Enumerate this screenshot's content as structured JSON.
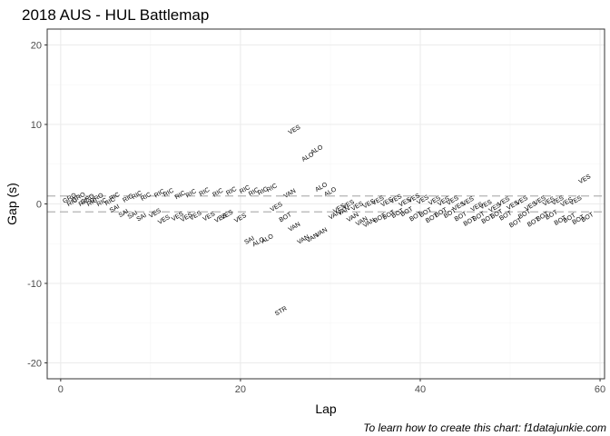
{
  "chart_data": {
    "type": "scatter",
    "title": "2018 AUS - HUL Battlemap",
    "xlabel": "Lap",
    "ylabel": "Gap (s)",
    "caption": "To learn how to create this chart: f1datajunkie.com",
    "xlim": [
      -1.5,
      60.5
    ],
    "ylim": [
      -22,
      22
    ],
    "x_ticks": [
      0,
      20,
      40,
      60
    ],
    "y_ticks": [
      -20,
      -10,
      0,
      10,
      20
    ],
    "grid": true,
    "reference_lines": [
      1,
      -1
    ],
    "label_rotation_deg": 30,
    "colors": {
      "panel_border": "#333333",
      "grid_major": "#ebebeb",
      "grid_minor": "#f5f5f5",
      "reference_line": "#b3b3b3",
      "text": "#000000",
      "tick_text": "#4d4d4d"
    },
    "points": [
      {
        "lap": 1,
        "gap": 0.7,
        "label": "GRO"
      },
      {
        "lap": 1.3,
        "gap": 0.2,
        "label": "RIC"
      },
      {
        "lap": 2,
        "gap": 0.8,
        "label": "GRO"
      },
      {
        "lap": 2.6,
        "gap": 0.2,
        "label": "RIC"
      },
      {
        "lap": 3,
        "gap": 0.6,
        "label": "GRO"
      },
      {
        "lap": 3.5,
        "gap": 0.2,
        "label": "RIC"
      },
      {
        "lap": 4,
        "gap": 0.7,
        "label": "GRO"
      },
      {
        "lap": 4.6,
        "gap": 0.2,
        "label": "RIC"
      },
      {
        "lap": 5.5,
        "gap": 0.3,
        "label": "RIC"
      },
      {
        "lap": 6,
        "gap": 0.9,
        "label": "RIC"
      },
      {
        "lap": 6,
        "gap": -0.6,
        "label": "SAI"
      },
      {
        "lap": 7.5,
        "gap": 0.7,
        "label": "RIC"
      },
      {
        "lap": 7,
        "gap": -1.2,
        "label": "SAI"
      },
      {
        "lap": 8.5,
        "gap": 1.1,
        "label": "RIC"
      },
      {
        "lap": 8,
        "gap": -1.4,
        "label": "SAI"
      },
      {
        "lap": 9.5,
        "gap": 0.9,
        "label": "RIC"
      },
      {
        "lap": 9,
        "gap": -1.7,
        "label": "SAI"
      },
      {
        "lap": 10.5,
        "gap": -1.2,
        "label": "VES"
      },
      {
        "lap": 11,
        "gap": 1.3,
        "label": "RIC"
      },
      {
        "lap": 11.5,
        "gap": -2.0,
        "label": "VES"
      },
      {
        "lap": 12,
        "gap": 1.4,
        "label": "RIC"
      },
      {
        "lap": 13,
        "gap": -1.6,
        "label": "VES"
      },
      {
        "lap": 13.3,
        "gap": 1.1,
        "label": "RIC"
      },
      {
        "lap": 14,
        "gap": -1.7,
        "label": "VES"
      },
      {
        "lap": 14.5,
        "gap": 1.3,
        "label": "RIC"
      },
      {
        "lap": 15,
        "gap": -1.5,
        "label": "VES"
      },
      {
        "lap": 16,
        "gap": 1.5,
        "label": "RIC"
      },
      {
        "lap": 16.5,
        "gap": -1.6,
        "label": "VES"
      },
      {
        "lap": 17.5,
        "gap": 1.4,
        "label": "RIC"
      },
      {
        "lap": 17.8,
        "gap": -1.8,
        "label": "VES"
      },
      {
        "lap": 18.5,
        "gap": -1.4,
        "label": "VES"
      },
      {
        "lap": 19,
        "gap": 1.6,
        "label": "RIC"
      },
      {
        "lap": 20,
        "gap": -1.8,
        "label": "VES"
      },
      {
        "lap": 20.5,
        "gap": 1.8,
        "label": "RIC"
      },
      {
        "lap": 21.5,
        "gap": 1.5,
        "label": "RIC"
      },
      {
        "lap": 21,
        "gap": -4.6,
        "label": "SAI"
      },
      {
        "lap": 22.5,
        "gap": 1.6,
        "label": "RIC"
      },
      {
        "lap": 22,
        "gap": -4.8,
        "label": "ALO"
      },
      {
        "lap": 23,
        "gap": -4.4,
        "label": "ALO"
      },
      {
        "lap": 23.5,
        "gap": 2.0,
        "label": "RIC"
      },
      {
        "lap": 24,
        "gap": -0.4,
        "label": "VES"
      },
      {
        "lap": 24.5,
        "gap": -13.5,
        "label": "STR"
      },
      {
        "lap": 25,
        "gap": -1.7,
        "label": "BOT"
      },
      {
        "lap": 25.5,
        "gap": 1.3,
        "label": "VAN"
      },
      {
        "lap": 26,
        "gap": -2.9,
        "label": "VAN"
      },
      {
        "lap": 26,
        "gap": 9.3,
        "label": "VES"
      },
      {
        "lap": 27,
        "gap": -4.5,
        "label": "VAN"
      },
      {
        "lap": 27.5,
        "gap": 5.9,
        "label": "ALO"
      },
      {
        "lap": 28,
        "gap": -4.3,
        "label": "VAN"
      },
      {
        "lap": 28.5,
        "gap": 6.8,
        "label": "ALO"
      },
      {
        "lap": 29,
        "gap": -3.6,
        "label": "VAN"
      },
      {
        "lap": 29,
        "gap": 2.1,
        "label": "ALO"
      },
      {
        "lap": 30,
        "gap": 1.5,
        "label": "ALO"
      },
      {
        "lap": 30.5,
        "gap": -1.4,
        "label": "VAN"
      },
      {
        "lap": 31,
        "gap": -0.6,
        "label": "VES"
      },
      {
        "lap": 31.5,
        "gap": -0.9,
        "label": "VAN"
      },
      {
        "lap": 32,
        "gap": -0.1,
        "label": "VES"
      },
      {
        "lap": 32.5,
        "gap": -1.7,
        "label": "VAN"
      },
      {
        "lap": 33,
        "gap": -0.3,
        "label": "VES"
      },
      {
        "lap": 33.5,
        "gap": -2.2,
        "label": "VAN"
      },
      {
        "lap": 34.3,
        "gap": 0.0,
        "label": "VES"
      },
      {
        "lap": 34.3,
        "gap": -2.4,
        "label": "VAN"
      },
      {
        "lap": 35.3,
        "gap": 0.4,
        "label": "VES"
      },
      {
        "lap": 35.5,
        "gap": -1.8,
        "label": "BOT"
      },
      {
        "lap": 36.3,
        "gap": 0.2,
        "label": "VES"
      },
      {
        "lap": 36.5,
        "gap": -1.4,
        "label": "BOT"
      },
      {
        "lap": 37.3,
        "gap": 0.6,
        "label": "VES"
      },
      {
        "lap": 37.5,
        "gap": -1.2,
        "label": "BOT"
      },
      {
        "lap": 38.3,
        "gap": 0.2,
        "label": "VES"
      },
      {
        "lap": 38.5,
        "gap": -1.0,
        "label": "BOT"
      },
      {
        "lap": 39.3,
        "gap": 0.7,
        "label": "VES"
      },
      {
        "lap": 39.5,
        "gap": -1.6,
        "label": "BOT"
      },
      {
        "lap": 40.3,
        "gap": 0.5,
        "label": "VES"
      },
      {
        "lap": 40.6,
        "gap": -1.1,
        "label": "BOT"
      },
      {
        "lap": 41.3,
        "gap": -1.8,
        "label": "BOT"
      },
      {
        "lap": 41.6,
        "gap": 0.4,
        "label": "VES"
      },
      {
        "lap": 42.3,
        "gap": -1.1,
        "label": "BOT"
      },
      {
        "lap": 42.6,
        "gap": 0.3,
        "label": "VES"
      },
      {
        "lap": 43.3,
        "gap": -1.2,
        "label": "BOT"
      },
      {
        "lap": 43.6,
        "gap": 0.4,
        "label": "VES"
      },
      {
        "lap": 44.3,
        "gap": -0.3,
        "label": "VES"
      },
      {
        "lap": 44.5,
        "gap": -1.6,
        "label": "BOT"
      },
      {
        "lap": 45.3,
        "gap": 0.3,
        "label": "VES"
      },
      {
        "lap": 45.5,
        "gap": -2.2,
        "label": "BOT"
      },
      {
        "lap": 46.3,
        "gap": -0.4,
        "label": "VES"
      },
      {
        "lap": 46.5,
        "gap": -1.6,
        "label": "BOT"
      },
      {
        "lap": 47.3,
        "gap": -0.1,
        "label": "VES"
      },
      {
        "lap": 47.5,
        "gap": -1.9,
        "label": "BOT"
      },
      {
        "lap": 48.3,
        "gap": -0.5,
        "label": "VES"
      },
      {
        "lap": 48.5,
        "gap": -1.3,
        "label": "BOT"
      },
      {
        "lap": 49.3,
        "gap": 0.3,
        "label": "VES"
      },
      {
        "lap": 49.5,
        "gap": -1.5,
        "label": "BOT"
      },
      {
        "lap": 50.3,
        "gap": -0.2,
        "label": "VES"
      },
      {
        "lap": 50.6,
        "gap": -2.4,
        "label": "BOT"
      },
      {
        "lap": 51.3,
        "gap": 0.4,
        "label": "VES"
      },
      {
        "lap": 51.6,
        "gap": -1.3,
        "label": "BOT"
      },
      {
        "lap": 52.3,
        "gap": -0.3,
        "label": "VES"
      },
      {
        "lap": 52.6,
        "gap": -2.3,
        "label": "BOT"
      },
      {
        "lap": 53.3,
        "gap": 0.4,
        "label": "VES"
      },
      {
        "lap": 53.6,
        "gap": -1.6,
        "label": "BOT"
      },
      {
        "lap": 54.3,
        "gap": 0.3,
        "label": "VES"
      },
      {
        "lap": 54.6,
        "gap": -1.4,
        "label": "BOT"
      },
      {
        "lap": 55.3,
        "gap": 0.4,
        "label": "VES"
      },
      {
        "lap": 55.6,
        "gap": -2.1,
        "label": "BOT"
      },
      {
        "lap": 56.3,
        "gap": 0.2,
        "label": "VES"
      },
      {
        "lap": 56.6,
        "gap": -1.8,
        "label": "BOT"
      },
      {
        "lap": 57.6,
        "gap": -2.0,
        "label": "BOT"
      },
      {
        "lap": 57.3,
        "gap": 0.4,
        "label": "VES"
      },
      {
        "lap": 58.3,
        "gap": 3.1,
        "label": "VES"
      },
      {
        "lap": 58.6,
        "gap": -1.7,
        "label": "BOT"
      }
    ]
  }
}
